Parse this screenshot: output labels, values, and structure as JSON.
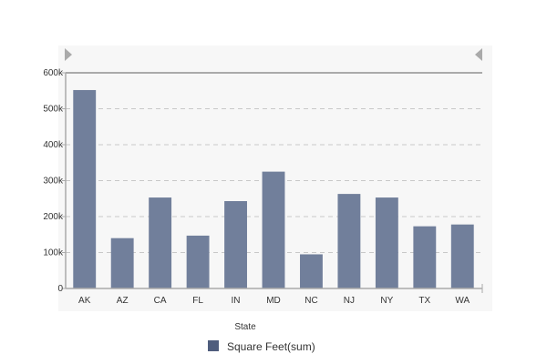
{
  "chart_data": {
    "type": "bar",
    "categories": [
      "AK",
      "AZ",
      "CA",
      "FL",
      "IN",
      "MD",
      "NC",
      "NJ",
      "NY",
      "TX",
      "WA"
    ],
    "series": [
      {
        "name": "Square Feet(sum)",
        "values": [
          552000,
          140000,
          253000,
          147000,
          243000,
          325000,
          95000,
          263000,
          253000,
          173000,
          178000
        ]
      }
    ],
    "xlabel": "State",
    "ylabel": "",
    "ylim": [
      0,
      600000
    ],
    "yticks": [
      0,
      100000,
      200000,
      300000,
      400000,
      500000,
      600000
    ],
    "ytick_labels": [
      "0",
      "100k",
      "200k",
      "300k",
      "400k",
      "500k",
      "600k"
    ],
    "grid": true,
    "legend_position": "bottom"
  },
  "colors": {
    "bar": "#717f9b",
    "legend_swatch": "#4f5d7d",
    "grid": "#c8c8c8",
    "axis": "#aaaaaa",
    "plot_background": "#f7f7f7",
    "scroll_arrow": "#aaaaaa"
  },
  "controls": {
    "scroll_left_icon": "triangle-right-icon",
    "scroll_right_icon": "triangle-left-icon"
  }
}
